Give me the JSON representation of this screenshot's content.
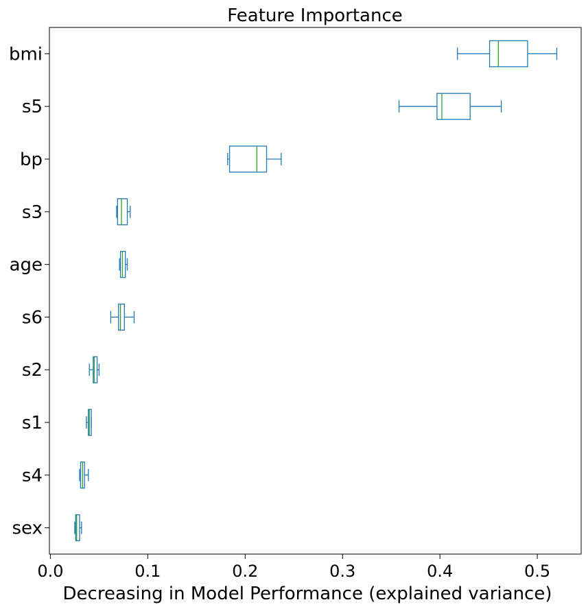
{
  "chart_data": {
    "type": "box",
    "orientation": "horizontal",
    "title": "Feature Importance",
    "xlabel": "Decreasing in Model Performance (explained variance)",
    "ylabel": "",
    "xlim": [
      -0.001,
      0.545
    ],
    "xticks": [
      0.0,
      0.1,
      0.2,
      0.3,
      0.4,
      0.5
    ],
    "xtick_labels": [
      "0.0",
      "0.1",
      "0.2",
      "0.3",
      "0.4",
      "0.5"
    ],
    "grid": false,
    "legend": "none",
    "categories": [
      "bmi",
      "s5",
      "bp",
      "s3",
      "age",
      "s6",
      "s2",
      "s1",
      "s4",
      "sex"
    ],
    "boxes": [
      {
        "label": "bmi",
        "whisker_low": 0.418,
        "q1": 0.451,
        "median": 0.46,
        "q3": 0.49,
        "whisker_high": 0.52
      },
      {
        "label": "s5",
        "whisker_low": 0.358,
        "q1": 0.397,
        "median": 0.402,
        "q3": 0.431,
        "whisker_high": 0.463
      },
      {
        "label": "bp",
        "whisker_low": 0.182,
        "q1": 0.184,
        "median": 0.212,
        "q3": 0.222,
        "whisker_high": 0.237
      },
      {
        "label": "s3",
        "whisker_low": 0.068,
        "q1": 0.069,
        "median": 0.073,
        "q3": 0.079,
        "whisker_high": 0.082
      },
      {
        "label": "age",
        "whisker_low": 0.071,
        "q1": 0.072,
        "median": 0.074,
        "q3": 0.077,
        "whisker_high": 0.079
      },
      {
        "label": "s6",
        "whisker_low": 0.062,
        "q1": 0.07,
        "median": 0.072,
        "q3": 0.076,
        "whisker_high": 0.086
      },
      {
        "label": "s2",
        "whisker_low": 0.04,
        "q1": 0.044,
        "median": 0.045,
        "q3": 0.048,
        "whisker_high": 0.05
      },
      {
        "label": "s1",
        "whisker_low": 0.037,
        "q1": 0.039,
        "median": 0.04,
        "q3": 0.042,
        "whisker_high": 0.042
      },
      {
        "label": "s4",
        "whisker_low": 0.03,
        "q1": 0.031,
        "median": 0.033,
        "q3": 0.035,
        "whisker_high": 0.039
      },
      {
        "label": "sex",
        "whisker_low": 0.025,
        "q1": 0.026,
        "median": 0.027,
        "q3": 0.03,
        "whisker_high": 0.032
      }
    ],
    "colors": {
      "box": "#1f77b4",
      "median": "#2ca02c",
      "axis": "#000000"
    }
  }
}
